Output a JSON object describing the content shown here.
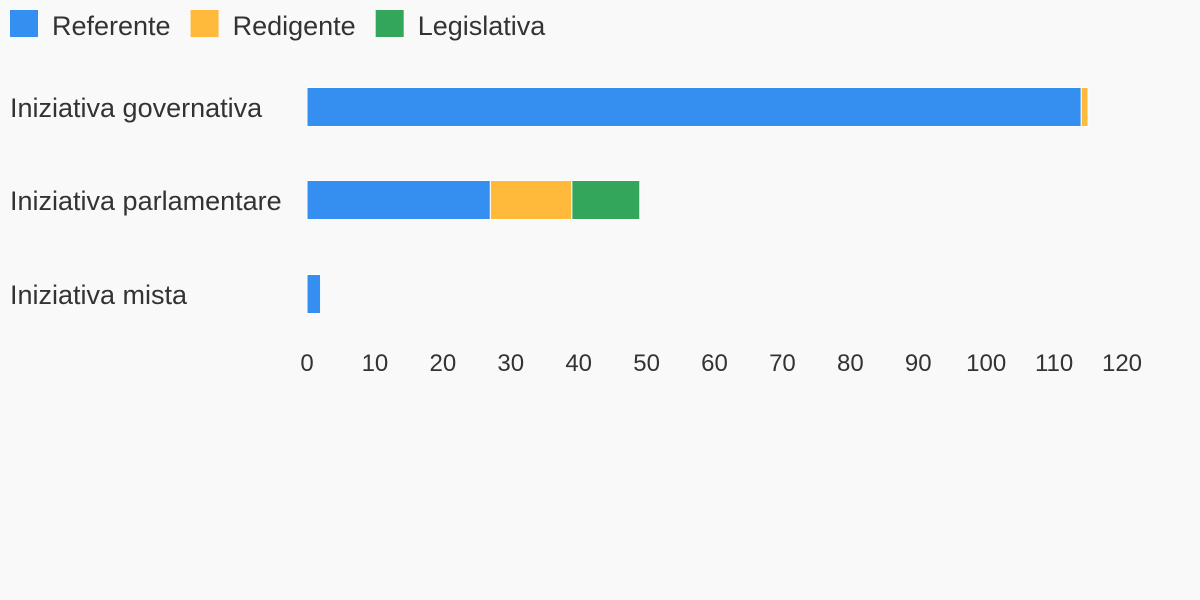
{
  "chart_data": {
    "type": "bar",
    "orientation": "horizontal",
    "stacked": true,
    "categories": [
      "Iniziativa governativa",
      "Iniziativa parlamentare",
      "Iniziativa mista"
    ],
    "series": [
      {
        "name": "Referente",
        "values": [
          114,
          27,
          2
        ],
        "color": "#348ff0"
      },
      {
        "name": "Redigente",
        "values": [
          1,
          12,
          0
        ],
        "color": "#ffb93b"
      },
      {
        "name": "Legislativa",
        "values": [
          0,
          10,
          0
        ],
        "color": "#33a65b"
      }
    ],
    "xticks": [
      "0",
      "10",
      "20",
      "30",
      "40",
      "50",
      "60",
      "70",
      "80",
      "90",
      "100",
      "110",
      "120"
    ],
    "xlim": [
      0,
      120
    ],
    "grid": false,
    "legend_position": "top-left"
  }
}
